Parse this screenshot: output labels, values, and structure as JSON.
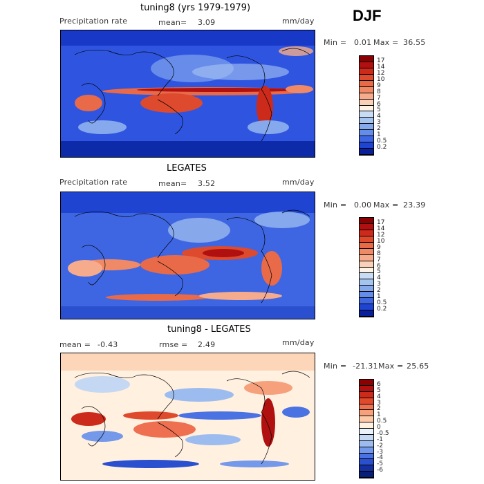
{
  "season": "DJF",
  "panels": [
    {
      "title": "tuning8 (yrs 1979-1979)",
      "left_label": "Precipitation rate",
      "stat_label": "mean=",
      "stat_value": "3.09",
      "units": "mm/day",
      "minmax_label_min": "Min =",
      "min_value": "0.01",
      "minmax_label_max": "Max =",
      "max_value": "36.55",
      "colorbar": {
        "labels": [
          "17",
          "14",
          "12",
          "10",
          "9",
          "8",
          "7",
          "6",
          "5",
          "4",
          "3",
          "2",
          "1",
          "0.5",
          "0.2"
        ],
        "colors": [
          "#8b0000",
          "#b01010",
          "#cc2a1a",
          "#dd4a2e",
          "#e86a48",
          "#f08a66",
          "#f6ac8c",
          "#fbd0b8",
          "#fff2e6",
          "#c8dcf4",
          "#a6c4f0",
          "#86a8ec",
          "#648cea",
          "#3f66e2",
          "#1f44d2",
          "#0a1f9a"
        ]
      }
    },
    {
      "title": "LEGATES",
      "left_label": "Precipitation rate",
      "stat_label": "mean=",
      "stat_value": "3.52",
      "units": "mm/day",
      "minmax_label_min": "Min =",
      "min_value": "0.00",
      "minmax_label_max": "Max =",
      "max_value": "23.39",
      "colorbar": {
        "labels": [
          "17",
          "14",
          "12",
          "10",
          "9",
          "8",
          "7",
          "6",
          "5",
          "4",
          "3",
          "2",
          "1",
          "0.5",
          "0.2"
        ],
        "colors": [
          "#8b0000",
          "#b01010",
          "#cc2a1a",
          "#dd4a2e",
          "#e86a48",
          "#f08a66",
          "#f6ac8c",
          "#fbd0b8",
          "#fff2e6",
          "#c8dcf4",
          "#a6c4f0",
          "#86a8ec",
          "#648cea",
          "#3f66e2",
          "#1f44d2",
          "#0a1f9a"
        ]
      }
    },
    {
      "title": "tuning8 - LEGATES",
      "mean_label": "mean =",
      "mean_value": "-0.43",
      "rmse_label": "rmse =",
      "rmse_value": "2.49",
      "units": "mm/day",
      "minmax_label_min": "Min =",
      "min_value": "-21.31",
      "minmax_label_max": "Max =",
      "max_value": "25.65",
      "colorbar": {
        "labels": [
          "6",
          "5",
          "4",
          "3",
          "2",
          "1",
          "0.5",
          "0",
          "-0.5",
          "-1",
          "-2",
          "-3",
          "-4",
          "-5",
          "-6"
        ],
        "colors": [
          "#8b0000",
          "#b01010",
          "#cc2a1a",
          "#e04a2c",
          "#ee7050",
          "#f6a07c",
          "#fccaa8",
          "#fff0e0",
          "#eaf2fc",
          "#c4d8f4",
          "#9cbcf0",
          "#7498ea",
          "#4a72e2",
          "#2a50d0",
          "#15309e",
          "#081f7a"
        ]
      }
    }
  ]
}
